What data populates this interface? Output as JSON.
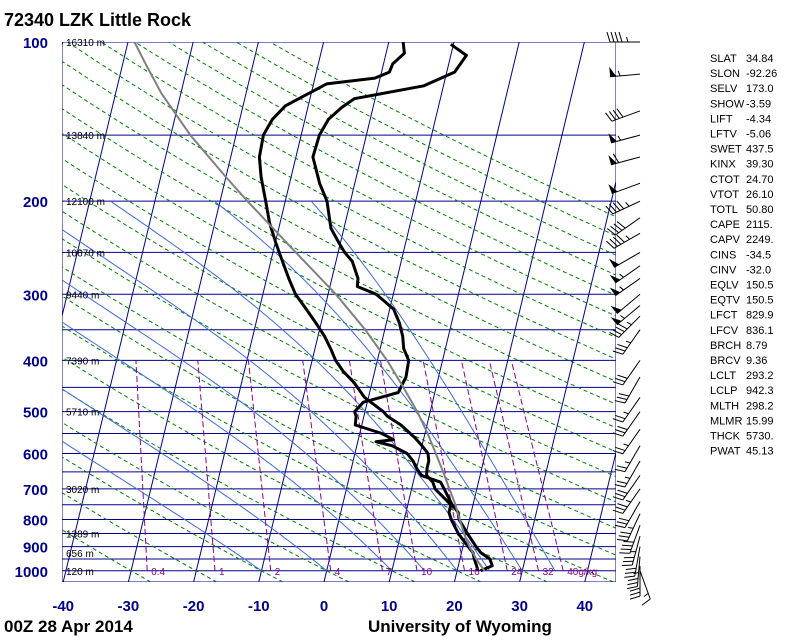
{
  "header": {
    "title": "72340 LZK Little Rock"
  },
  "footer": {
    "date": "00Z 28 Apr 2014",
    "credit": "University of Wyoming"
  },
  "chart_data": {
    "type": "line",
    "title": "72340 LZK Little Rock",
    "xlabel": "",
    "ylabel": "",
    "xlim": [
      -40,
      45
    ],
    "ylim": [
      1050,
      100
    ],
    "y_scale": "log",
    "grid": true,
    "x_ticks": [
      "-40",
      "-30",
      "-20",
      "-10",
      "0",
      "10",
      "20",
      "30",
      "40"
    ],
    "pressure_ticks": [
      "100",
      "200",
      "300",
      "400",
      "500",
      "600",
      "700",
      "800",
      "900",
      "1000"
    ],
    "pressure_tick_values": [
      100,
      200,
      300,
      400,
      500,
      600,
      700,
      800,
      900,
      1000
    ],
    "height_labels": [
      {
        "p": 100,
        "text": "16310 m"
      },
      {
        "p": 150,
        "text": "13840 m"
      },
      {
        "p": 200,
        "text": "12100 m"
      },
      {
        "p": 250,
        "text": "10670 m"
      },
      {
        "p": 300,
        "text": "9440 m"
      },
      {
        "p": 400,
        "text": "7390 m"
      },
      {
        "p": 500,
        "text": "5710 m"
      },
      {
        "p": 700,
        "text": "3020 m"
      },
      {
        "p": 850,
        "text": "1389 m"
      },
      {
        "p": 925,
        "text": "656 m"
      },
      {
        "p": 1000,
        "text": "120 m"
      }
    ],
    "mixing_ratio_labels": [
      "0.4",
      "1",
      "2",
      "4",
      "7",
      "10",
      "16",
      "24",
      "32",
      "40g/kg"
    ],
    "mixing_ratio_values": [
      0.4,
      1,
      2,
      4,
      7,
      10,
      16,
      24,
      32,
      40
    ],
    "series": [
      {
        "values": [
          [
            1000,
            23.6
          ],
          [
            978,
            25.2
          ],
          [
            950,
            24.6
          ],
          [
            925,
            23.0
          ],
          [
            900,
            22.0
          ],
          [
            850,
            20.2
          ],
          [
            800,
            18.4
          ],
          [
            775,
            18.0
          ],
          [
            750,
            16.8
          ],
          [
            700,
            15.0
          ],
          [
            680,
            14.2
          ],
          [
            660,
            11.0
          ],
          [
            640,
            10.0
          ],
          [
            620,
            9.2
          ],
          [
            600,
            8.0
          ],
          [
            580,
            5.4
          ],
          [
            570,
            2.8
          ],
          [
            565,
            5.4
          ],
          [
            550,
            3.4
          ],
          [
            530,
            -1.0
          ],
          [
            510,
            -1.2
          ],
          [
            500,
            -1.6
          ],
          [
            480,
            -0.6
          ],
          [
            460,
            4.4
          ],
          [
            430,
            5.0
          ],
          [
            400,
            4.8
          ],
          [
            380,
            3.6
          ],
          [
            360,
            3.0
          ],
          [
            340,
            2.0
          ],
          [
            320,
            0.6
          ],
          [
            300,
            -2.6
          ],
          [
            290,
            -5.8
          ],
          [
            280,
            -6.0
          ],
          [
            260,
            -7.5
          ],
          [
            250,
            -9.0
          ],
          [
            240,
            -10.2
          ],
          [
            225,
            -12.0
          ],
          [
            200,
            -13.6
          ],
          [
            185,
            -15.4
          ],
          [
            165,
            -17.4
          ],
          [
            150,
            -17.2
          ],
          [
            140,
            -16.4
          ],
          [
            133,
            -14.8
          ],
          [
            128,
            -13.2
          ],
          [
            121,
            -3.0
          ],
          [
            114,
            1.2
          ],
          [
            106,
            2.4
          ],
          [
            101,
            -0.4
          ]
        ]
      },
      {
        "values": [
          [
            1000,
            23.2
          ],
          [
            978,
            22.8
          ],
          [
            950,
            22.2
          ],
          [
            925,
            21.8
          ],
          [
            900,
            20.8
          ],
          [
            850,
            18.8
          ],
          [
            800,
            17.2
          ],
          [
            775,
            16.6
          ],
          [
            750,
            16.6
          ],
          [
            700,
            13.6
          ],
          [
            680,
            13.0
          ],
          [
            660,
            11.8
          ],
          [
            640,
            11.6
          ],
          [
            620,
            11.6
          ],
          [
            600,
            11.2
          ],
          [
            580,
            10.0
          ],
          [
            560,
            8.6
          ],
          [
            530,
            6.0
          ],
          [
            510,
            3.6
          ],
          [
            500,
            2.8
          ],
          [
            470,
            -0.6
          ],
          [
            440,
            -2.8
          ],
          [
            420,
            -4.8
          ],
          [
            400,
            -6.4
          ],
          [
            380,
            -7.6
          ],
          [
            360,
            -9.0
          ],
          [
            340,
            -10.8
          ],
          [
            320,
            -12.8
          ],
          [
            300,
            -15.0
          ],
          [
            280,
            -16.6
          ],
          [
            260,
            -18.2
          ],
          [
            240,
            -19.9
          ],
          [
            220,
            -21.6
          ],
          [
            200,
            -23.0
          ],
          [
            180,
            -24.6
          ],
          [
            165,
            -25.6
          ],
          [
            150,
            -25.8
          ],
          [
            140,
            -25.0
          ],
          [
            132,
            -23.5
          ],
          [
            126,
            -20.8
          ],
          [
            120,
            -18.0
          ],
          [
            117,
            -10.8
          ],
          [
            114,
            -8.8
          ],
          [
            110,
            -8.6
          ],
          [
            105,
            -7.2
          ],
          [
            100,
            -7.8
          ]
        ]
      },
      {
        "values": [
          [
            1000,
            24.2
          ],
          [
            950,
            22.5
          ],
          [
            900,
            21.0
          ],
          [
            850,
            19.7
          ],
          [
            800,
            18.5
          ],
          [
            750,
            17.3
          ],
          [
            700,
            15.8
          ],
          [
            650,
            14.2
          ],
          [
            600,
            12.4
          ],
          [
            550,
            10.4
          ],
          [
            500,
            8.0
          ],
          [
            450,
            5.0
          ],
          [
            400,
            1.5
          ],
          [
            350,
            -3.0
          ],
          [
            300,
            -8.8
          ],
          [
            250,
            -16.5
          ],
          [
            200,
            -25.8
          ],
          [
            180,
            -30.0
          ],
          [
            150,
            -37.0
          ],
          [
            125,
            -43.0
          ],
          [
            110,
            -46.5
          ],
          [
            100,
            -49.0
          ]
        ]
      }
    ],
    "indices": [
      [
        "SLAT",
        "34.84"
      ],
      [
        "SLON",
        "-92.26"
      ],
      [
        "SELV",
        "173.0"
      ],
      [
        "SHOW",
        "-3.59"
      ],
      [
        "LIFT",
        "-4.34"
      ],
      [
        "LFTV",
        "-5.06"
      ],
      [
        "SWET",
        "437.5"
      ],
      [
        "KINX",
        "39.30"
      ],
      [
        "CTOT",
        "24.70"
      ],
      [
        "VTOT",
        "26.10"
      ],
      [
        "TOTL",
        "50.80"
      ],
      [
        "CAPE",
        "2115."
      ],
      [
        "CAPV",
        "2249."
      ],
      [
        "CINS",
        "-34.5"
      ],
      [
        "CINV",
        "-32.0"
      ],
      [
        "EQLV",
        "150.5"
      ],
      [
        "EQTV",
        "150.5"
      ],
      [
        "LFCT",
        "829.9"
      ],
      [
        "LFCV",
        "836.1"
      ],
      [
        "BRCH",
        "8.79"
      ],
      [
        "BRCV",
        "9.36"
      ],
      [
        "LCLT",
        "293.2"
      ],
      [
        "LCLP",
        "942.3"
      ],
      [
        "MLTH",
        "298.2"
      ],
      [
        "MLMR",
        "15.99"
      ],
      [
        "THCK",
        "5730."
      ],
      [
        "PWAT",
        "45.13"
      ]
    ],
    "wind_barbs": [
      {
        "p": 100,
        "dir": 270,
        "spd": 45
      },
      {
        "p": 115,
        "dir": 265,
        "spd": 55
      },
      {
        "p": 135,
        "dir": 250,
        "spd": 40
      },
      {
        "p": 150,
        "dir": 255,
        "spd": 55
      },
      {
        "p": 165,
        "dir": 255,
        "spd": 60
      },
      {
        "p": 185,
        "dir": 250,
        "spd": 50
      },
      {
        "p": 200,
        "dir": 245,
        "spd": 45
      },
      {
        "p": 215,
        "dir": 235,
        "spd": 40
      },
      {
        "p": 230,
        "dir": 240,
        "spd": 45
      },
      {
        "p": 250,
        "dir": 240,
        "spd": 50
      },
      {
        "p": 265,
        "dir": 235,
        "spd": 55
      },
      {
        "p": 280,
        "dir": 235,
        "spd": 55
      },
      {
        "p": 300,
        "dir": 230,
        "spd": 50
      },
      {
        "p": 315,
        "dir": 230,
        "spd": 55
      },
      {
        "p": 330,
        "dir": 225,
        "spd": 45
      },
      {
        "p": 350,
        "dir": 215,
        "spd": 35
      },
      {
        "p": 400,
        "dir": 215,
        "spd": 30
      },
      {
        "p": 430,
        "dir": 210,
        "spd": 30
      },
      {
        "p": 470,
        "dir": 215,
        "spd": 25
      },
      {
        "p": 500,
        "dir": 215,
        "spd": 30
      },
      {
        "p": 540,
        "dir": 215,
        "spd": 25
      },
      {
        "p": 580,
        "dir": 210,
        "spd": 25
      },
      {
        "p": 620,
        "dir": 210,
        "spd": 25
      },
      {
        "p": 660,
        "dir": 215,
        "spd": 30
      },
      {
        "p": 700,
        "dir": 215,
        "spd": 35
      },
      {
        "p": 740,
        "dir": 210,
        "spd": 30
      },
      {
        "p": 780,
        "dir": 205,
        "spd": 35
      },
      {
        "p": 820,
        "dir": 200,
        "spd": 40
      },
      {
        "p": 860,
        "dir": 195,
        "spd": 35
      },
      {
        "p": 900,
        "dir": 190,
        "spd": 30
      },
      {
        "p": 940,
        "dir": 185,
        "spd": 35
      },
      {
        "p": 980,
        "dir": 180,
        "spd": 30
      },
      {
        "p": 1000,
        "dir": 160,
        "spd": 15
      }
    ],
    "colors": {
      "isobar": "#00008b",
      "isotherm": "#00008b",
      "dry_adiabat": "#008000",
      "moist_adiabat": "#4169e1",
      "mixing_ratio": "#8b008b",
      "temperature": "#000000",
      "dewpoint": "#000000",
      "parcel": "#808080"
    }
  }
}
